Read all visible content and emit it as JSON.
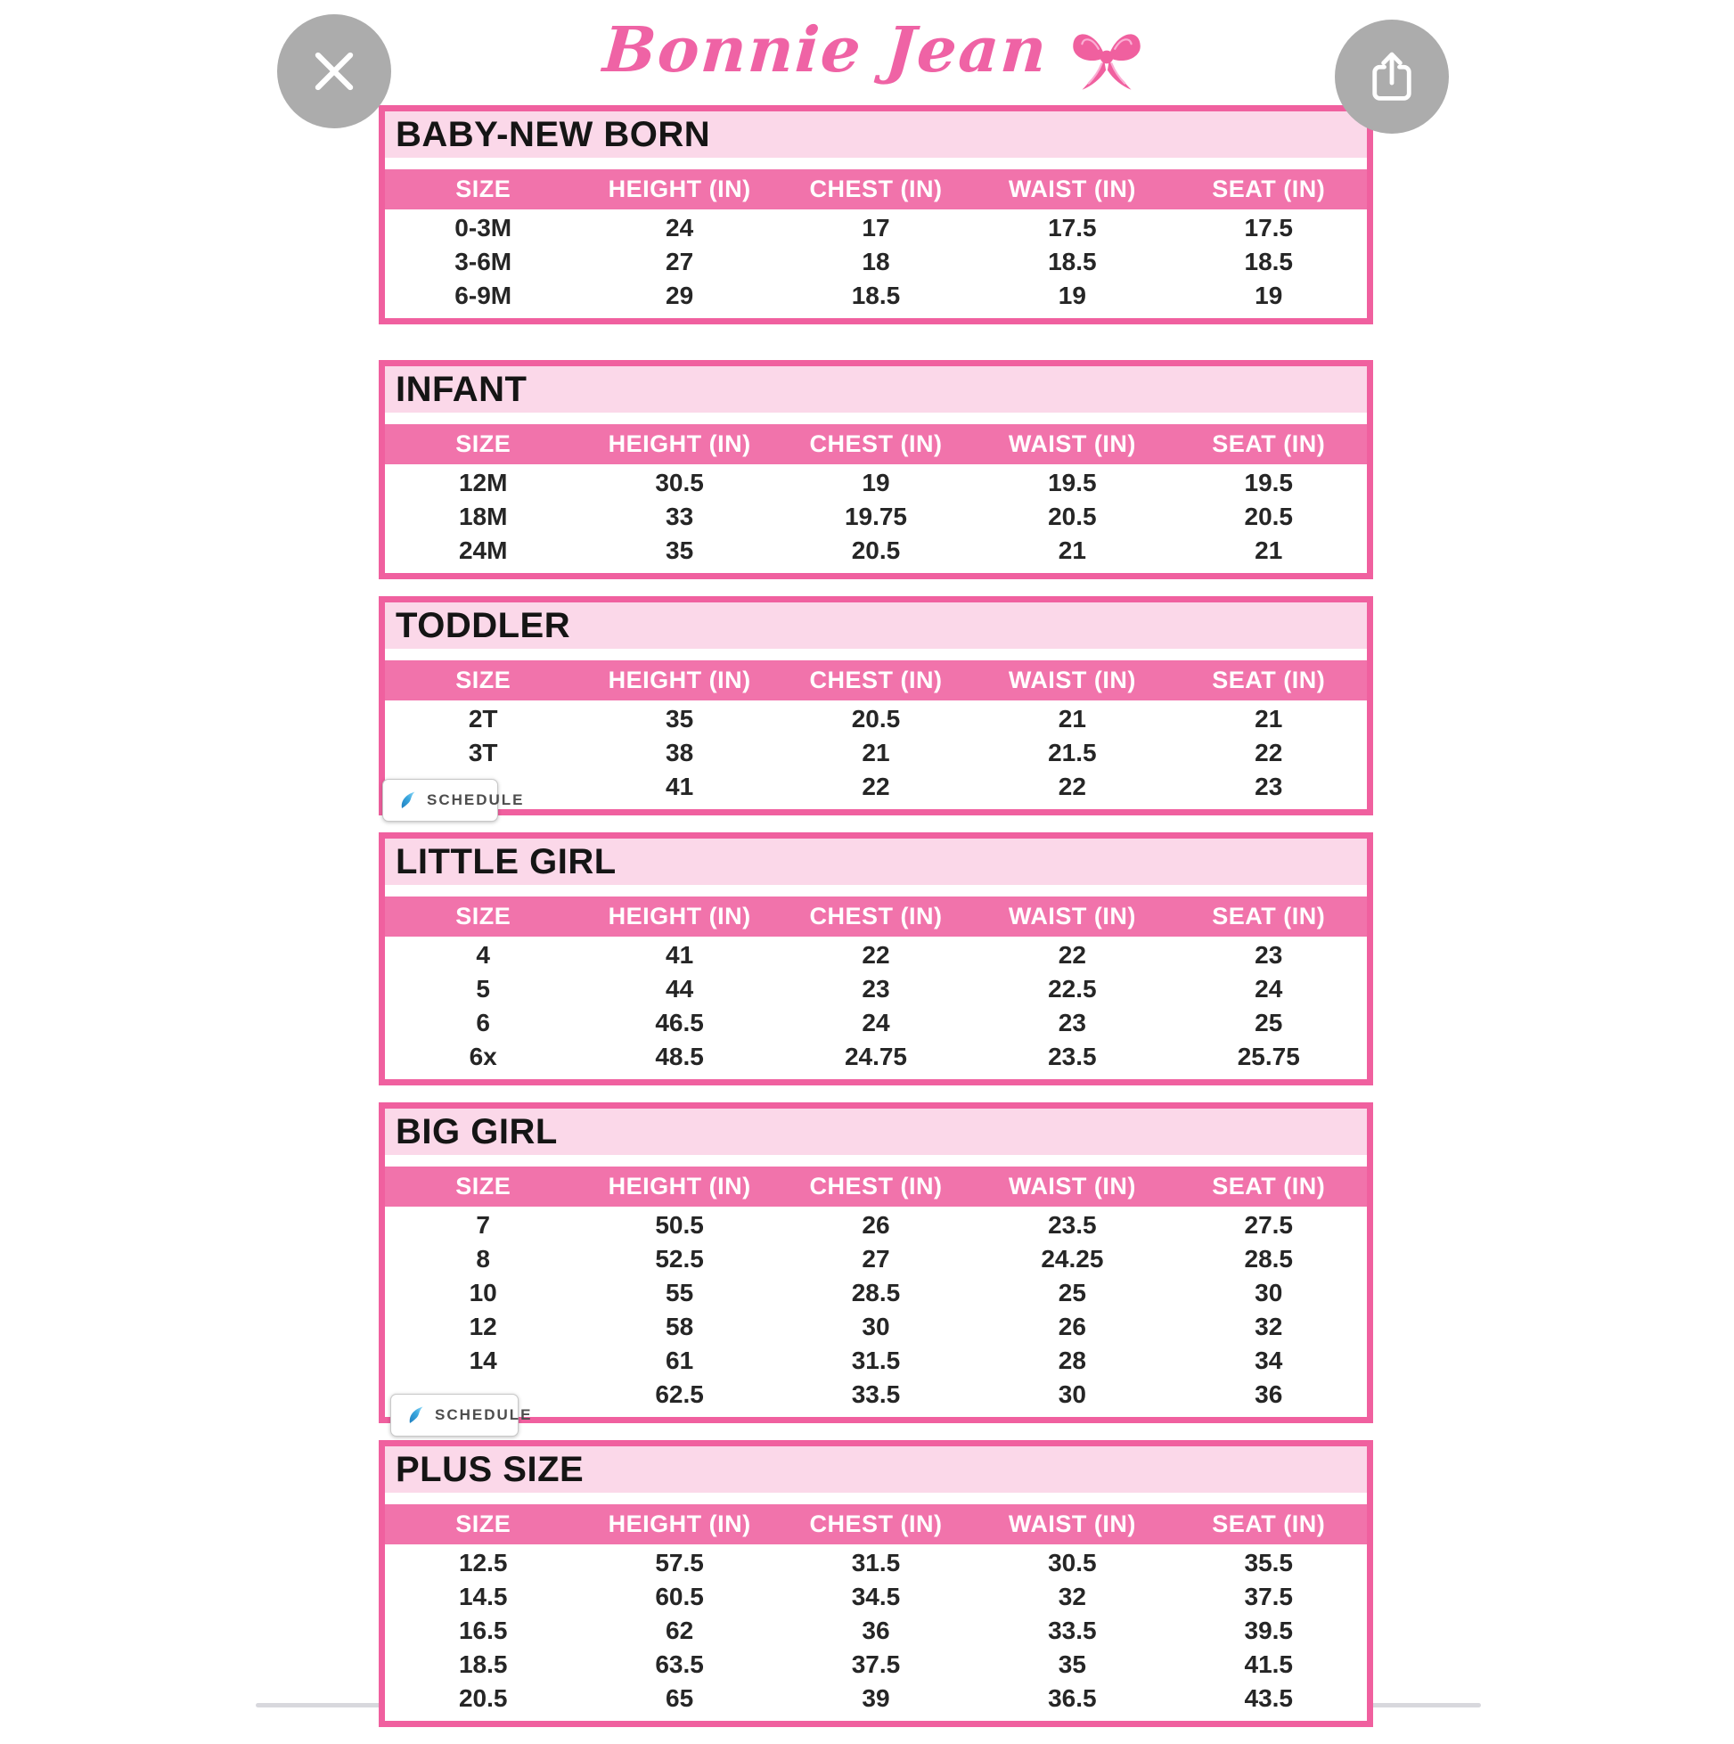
{
  "viewer": {
    "close_icon": "x-close",
    "share_icon": "ios-share"
  },
  "brand": {
    "logo_text": "Bonnie Jean",
    "bow_icon": "ribbon-bow",
    "logo_color": "#ef63a5"
  },
  "overlay_buttons": {
    "schedule_label": "SCHEDULE",
    "schedule_icon": "blue-flame"
  },
  "colors": {
    "c-border": "#f0609f",
    "c-title-bg": "#fbd8e9",
    "c-header-bg": "#f173ab",
    "c-logo": "#ef63a5",
    "c-sched-text": "#4d4d4d"
  },
  "columns": [
    "SIZE",
    "HEIGHT (IN)",
    "CHEST (IN)",
    "WAIST (IN)",
    "SEAT (IN)"
  ],
  "sections": [
    {
      "title": "BABY-NEW BORN",
      "schedule_overlay": null,
      "rows": [
        [
          "0-3M",
          "24",
          "17",
          "17.5",
          "17.5"
        ],
        [
          "3-6M",
          "27",
          "18",
          "18.5",
          "18.5"
        ],
        [
          "6-9M",
          "29",
          "18.5",
          "19",
          "19"
        ]
      ]
    },
    {
      "title": "INFANT",
      "schedule_overlay": null,
      "rows": [
        [
          "12M",
          "30.5",
          "19",
          "19.5",
          "19.5"
        ],
        [
          "18M",
          "33",
          "19.75",
          "20.5",
          "20.5"
        ],
        [
          "24M",
          "35",
          "20.5",
          "21",
          "21"
        ]
      ]
    },
    {
      "title": "TODDLER",
      "schedule_overlay": "pos-toddler",
      "rows": [
        [
          "2T",
          "35",
          "20.5",
          "21",
          "21"
        ],
        [
          "3T",
          "38",
          "21",
          "21.5",
          "22"
        ],
        [
          "",
          "41",
          "22",
          "22",
          "23"
        ]
      ]
    },
    {
      "title": "LITTLE GIRL",
      "schedule_overlay": null,
      "rows": [
        [
          "4",
          "41",
          "22",
          "22",
          "23"
        ],
        [
          "5",
          "44",
          "23",
          "22.5",
          "24"
        ],
        [
          "6",
          "46.5",
          "24",
          "23",
          "25"
        ],
        [
          "6x",
          "48.5",
          "24.75",
          "23.5",
          "25.75"
        ]
      ]
    },
    {
      "title": "BIG GIRL",
      "schedule_overlay": "pos-biggirl",
      "rows": [
        [
          "7",
          "50.5",
          "26",
          "23.5",
          "27.5"
        ],
        [
          "8",
          "52.5",
          "27",
          "24.25",
          "28.5"
        ],
        [
          "10",
          "55",
          "28.5",
          "25",
          "30"
        ],
        [
          "12",
          "58",
          "30",
          "26",
          "32"
        ],
        [
          "14",
          "61",
          "31.5",
          "28",
          "34"
        ],
        [
          "",
          "62.5",
          "33.5",
          "30",
          "36"
        ]
      ]
    },
    {
      "title": "PLUS SIZE",
      "schedule_overlay": null,
      "rows": [
        [
          "12.5",
          "57.5",
          "31.5",
          "30.5",
          "35.5"
        ],
        [
          "14.5",
          "60.5",
          "34.5",
          "32",
          "37.5"
        ],
        [
          "16.5",
          "62",
          "36",
          "33.5",
          "39.5"
        ],
        [
          "18.5",
          "63.5",
          "37.5",
          "35",
          "41.5"
        ],
        [
          "20.5",
          "65",
          "39",
          "36.5",
          "43.5"
        ]
      ]
    }
  ]
}
